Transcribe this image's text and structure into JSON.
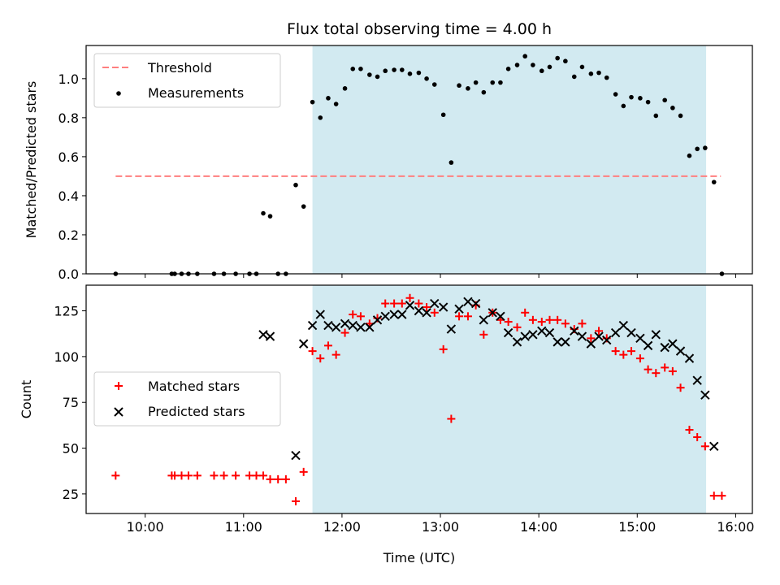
{
  "chart_data": [
    {
      "type": "scatter",
      "title": "Flux total observing time = 4.00 h",
      "xlabel": "",
      "ylabel": "Matched/Predicted stars",
      "x_unit": "hours (UTC)",
      "xlim": [
        9.4,
        16.17
      ],
      "ylim": [
        0.0,
        1.17
      ],
      "x_ticks": [
        10,
        11,
        12,
        13,
        14,
        15,
        16
      ],
      "y_ticks": [
        0.0,
        0.2,
        0.4,
        0.6,
        0.8,
        1.0
      ],
      "y_tick_labels": [
        "0.0",
        "0.2",
        "0.4",
        "0.6",
        "0.8",
        "1.0"
      ],
      "shaded_interval": {
        "x": [
          11.7,
          15.7
        ],
        "color": "#add8e6"
      },
      "legend_position": "top-left",
      "threshold": {
        "name": "Threshold",
        "value": 0.5,
        "x": [
          9.7,
          15.85
        ],
        "color": "#ff7f7f"
      },
      "series": [
        {
          "name": "Measurements",
          "color": "#000000",
          "points": [
            [
              9.7,
              0.0
            ],
            [
              10.27,
              0.0
            ],
            [
              10.3,
              0.0
            ],
            [
              10.37,
              0.0
            ],
            [
              10.44,
              0.0
            ],
            [
              10.53,
              0.0
            ],
            [
              10.7,
              0.0
            ],
            [
              10.8,
              0.0
            ],
            [
              10.92,
              0.0
            ],
            [
              11.06,
              0.0
            ],
            [
              11.13,
              0.0
            ],
            [
              11.2,
              0.31
            ],
            [
              11.27,
              0.295
            ],
            [
              11.35,
              0.0
            ],
            [
              11.43,
              0.0
            ],
            [
              11.53,
              0.455
            ],
            [
              11.61,
              0.345
            ],
            [
              11.7,
              0.88
            ],
            [
              11.78,
              0.8
            ],
            [
              11.86,
              0.9
            ],
            [
              11.94,
              0.87
            ],
            [
              12.03,
              0.95
            ],
            [
              12.11,
              1.05
            ],
            [
              12.19,
              1.05
            ],
            [
              12.28,
              1.02
            ],
            [
              12.36,
              1.01
            ],
            [
              12.44,
              1.04
            ],
            [
              12.53,
              1.045
            ],
            [
              12.61,
              1.045
            ],
            [
              12.69,
              1.025
            ],
            [
              12.78,
              1.03
            ],
            [
              12.86,
              1.0
            ],
            [
              12.94,
              0.97
            ],
            [
              13.03,
              0.815
            ],
            [
              13.11,
              0.57
            ],
            [
              13.19,
              0.965
            ],
            [
              13.28,
              0.95
            ],
            [
              13.36,
              0.98
            ],
            [
              13.44,
              0.93
            ],
            [
              13.53,
              0.98
            ],
            [
              13.61,
              0.98
            ],
            [
              13.69,
              1.05
            ],
            [
              13.78,
              1.07
            ],
            [
              13.86,
              1.115
            ],
            [
              13.94,
              1.07
            ],
            [
              14.03,
              1.04
            ],
            [
              14.11,
              1.06
            ],
            [
              14.19,
              1.105
            ],
            [
              14.27,
              1.09
            ],
            [
              14.36,
              1.01
            ],
            [
              14.44,
              1.06
            ],
            [
              14.53,
              1.025
            ],
            [
              14.61,
              1.03
            ],
            [
              14.69,
              1.005
            ],
            [
              14.78,
              0.92
            ],
            [
              14.86,
              0.86
            ],
            [
              14.94,
              0.905
            ],
            [
              15.03,
              0.9
            ],
            [
              15.11,
              0.88
            ],
            [
              15.19,
              0.81
            ],
            [
              15.28,
              0.89
            ],
            [
              15.36,
              0.85
            ],
            [
              15.44,
              0.81
            ],
            [
              15.53,
              0.605
            ],
            [
              15.61,
              0.64
            ],
            [
              15.69,
              0.645
            ],
            [
              15.78,
              0.47
            ],
            [
              15.86,
              0.0
            ]
          ]
        }
      ]
    },
    {
      "type": "scatter",
      "title": "",
      "xlabel": "Time (UTC)",
      "ylabel": "Count",
      "x_unit": "hours (UTC)",
      "xlim": [
        9.4,
        16.17
      ],
      "ylim": [
        14.3,
        139.0
      ],
      "x_ticks": [
        10,
        11,
        12,
        13,
        14,
        15,
        16
      ],
      "x_tick_labels": [
        "10:00",
        "11:00",
        "12:00",
        "13:00",
        "14:00",
        "15:00",
        "16:00"
      ],
      "y_ticks": [
        25,
        50,
        75,
        100,
        125
      ],
      "y_tick_labels": [
        "25",
        "50",
        "75",
        "100",
        "125"
      ],
      "shaded_interval": {
        "x": [
          11.7,
          15.7
        ],
        "color": "#add8e6"
      },
      "legend_position": "center-left",
      "series": [
        {
          "name": "Matched stars",
          "color": "#ff0000",
          "marker": "plus",
          "points": [
            [
              9.7,
              35
            ],
            [
              10.27,
              35
            ],
            [
              10.3,
              35
            ],
            [
              10.37,
              35
            ],
            [
              10.44,
              35
            ],
            [
              10.53,
              35
            ],
            [
              10.7,
              35
            ],
            [
              10.8,
              35
            ],
            [
              10.92,
              35
            ],
            [
              11.06,
              35
            ],
            [
              11.13,
              35
            ],
            [
              11.2,
              35
            ],
            [
              11.27,
              33
            ],
            [
              11.35,
              33
            ],
            [
              11.43,
              33
            ],
            [
              11.53,
              21
            ],
            [
              11.61,
              37
            ],
            [
              11.7,
              103
            ],
            [
              11.78,
              99
            ],
            [
              11.86,
              106
            ],
            [
              11.94,
              101
            ],
            [
              12.03,
              113
            ],
            [
              12.11,
              123
            ],
            [
              12.19,
              122
            ],
            [
              12.28,
              118
            ],
            [
              12.36,
              121
            ],
            [
              12.44,
              129
            ],
            [
              12.53,
              129
            ],
            [
              12.61,
              129
            ],
            [
              12.69,
              132
            ],
            [
              12.78,
              129
            ],
            [
              12.86,
              127
            ],
            [
              12.94,
              124
            ],
            [
              13.03,
              104
            ],
            [
              13.11,
              66
            ],
            [
              13.19,
              122
            ],
            [
              13.28,
              122
            ],
            [
              13.36,
              128
            ],
            [
              13.44,
              112
            ],
            [
              13.53,
              124
            ],
            [
              13.61,
              120
            ],
            [
              13.69,
              119
            ],
            [
              13.78,
              116
            ],
            [
              13.86,
              124
            ],
            [
              13.94,
              120
            ],
            [
              14.03,
              119
            ],
            [
              14.11,
              120
            ],
            [
              14.19,
              120
            ],
            [
              14.27,
              118
            ],
            [
              14.36,
              115
            ],
            [
              14.44,
              118
            ],
            [
              14.53,
              110
            ],
            [
              14.61,
              114
            ],
            [
              14.69,
              110
            ],
            [
              14.78,
              103
            ],
            [
              14.86,
              101
            ],
            [
              14.94,
              103
            ],
            [
              15.03,
              99
            ],
            [
              15.11,
              93
            ],
            [
              15.19,
              91
            ],
            [
              15.28,
              94
            ],
            [
              15.36,
              92
            ],
            [
              15.44,
              83
            ],
            [
              15.53,
              60
            ],
            [
              15.61,
              56
            ],
            [
              15.69,
              51
            ],
            [
              15.78,
              24
            ],
            [
              15.86,
              24
            ]
          ]
        },
        {
          "name": "Predicted stars",
          "color": "#000000",
          "marker": "x",
          "points": [
            [
              11.2,
              112
            ],
            [
              11.27,
              111
            ],
            [
              11.53,
              46
            ],
            [
              11.61,
              107
            ],
            [
              11.7,
              117
            ],
            [
              11.78,
              123
            ],
            [
              11.86,
              117
            ],
            [
              11.94,
              116
            ],
            [
              12.03,
              118
            ],
            [
              12.11,
              117
            ],
            [
              12.19,
              116
            ],
            [
              12.28,
              116
            ],
            [
              12.36,
              120
            ],
            [
              12.44,
              122
            ],
            [
              12.53,
              123
            ],
            [
              12.61,
              123
            ],
            [
              12.69,
              128
            ],
            [
              12.78,
              125
            ],
            [
              12.86,
              124
            ],
            [
              12.94,
              129
            ],
            [
              13.03,
              127
            ],
            [
              13.11,
              115
            ],
            [
              13.19,
              126
            ],
            [
              13.28,
              130
            ],
            [
              13.36,
              129
            ],
            [
              13.44,
              120
            ],
            [
              13.53,
              124
            ],
            [
              13.61,
              122
            ],
            [
              13.69,
              113
            ],
            [
              13.78,
              108
            ],
            [
              13.86,
              111
            ],
            [
              13.94,
              112
            ],
            [
              14.03,
              114
            ],
            [
              14.11,
              113
            ],
            [
              14.19,
              108
            ],
            [
              14.27,
              108
            ],
            [
              14.36,
              114
            ],
            [
              14.44,
              111
            ],
            [
              14.53,
              107
            ],
            [
              14.61,
              111
            ],
            [
              14.69,
              109
            ],
            [
              14.78,
              113
            ],
            [
              14.86,
              117
            ],
            [
              14.94,
              113
            ],
            [
              15.03,
              110
            ],
            [
              15.11,
              106
            ],
            [
              15.19,
              112
            ],
            [
              15.28,
              105
            ],
            [
              15.36,
              107
            ],
            [
              15.44,
              103
            ],
            [
              15.53,
              99
            ],
            [
              15.61,
              87
            ],
            [
              15.69,
              79
            ],
            [
              15.78,
              51
            ]
          ]
        }
      ]
    }
  ]
}
